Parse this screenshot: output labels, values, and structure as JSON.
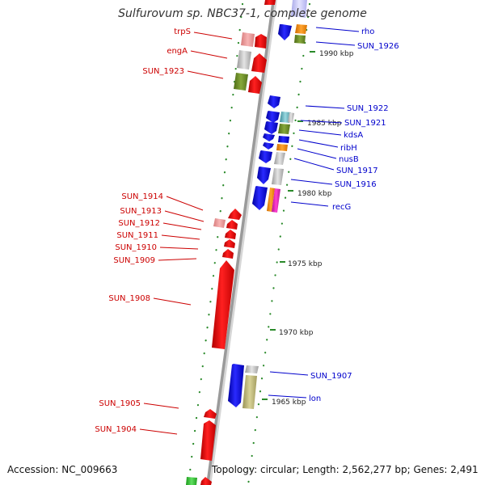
{
  "title": "Sulfurovum sp. NBC37-1, complete genome",
  "accession": "Accession: NC_009663",
  "topology": "Topology: circular; Length: 2,562,277 bp; Genes: 2,491",
  "colors": {
    "forward_label": "#cc0000",
    "reverse_label": "#0000cc",
    "backbone": "#9a9a9a",
    "tick": "#2a8a2a"
  },
  "ticks": [
    {
      "label": "1990 kbp"
    },
    {
      "label": "1985 kbp"
    },
    {
      "label": "1980 kbp"
    },
    {
      "label": "1975 kbp"
    },
    {
      "label": "1970 kbp"
    },
    {
      "label": "1965 kbp"
    }
  ],
  "labels_left": [
    {
      "text": "trpS"
    },
    {
      "text": "engA"
    },
    {
      "text": "SUN_1923"
    },
    {
      "text": "SUN_1914"
    },
    {
      "text": "SUN_1913"
    },
    {
      "text": "SUN_1912"
    },
    {
      "text": "SUN_1911"
    },
    {
      "text": "SUN_1910"
    },
    {
      "text": "SUN_1909"
    },
    {
      "text": "SUN_1908"
    },
    {
      "text": "SUN_1905"
    },
    {
      "text": "SUN_1904"
    }
  ],
  "labels_right": [
    {
      "text": "rho"
    },
    {
      "text": "SUN_1926"
    },
    {
      "text": "SUN_1922"
    },
    {
      "text": "SUN_1921"
    },
    {
      "text": "kdsA"
    },
    {
      "text": "ribH"
    },
    {
      "text": "nusB"
    },
    {
      "text": "SUN_1917"
    },
    {
      "text": "SUN_1916"
    },
    {
      "text": "recG"
    },
    {
      "text": "SUN_1907"
    },
    {
      "text": "lon"
    }
  ]
}
